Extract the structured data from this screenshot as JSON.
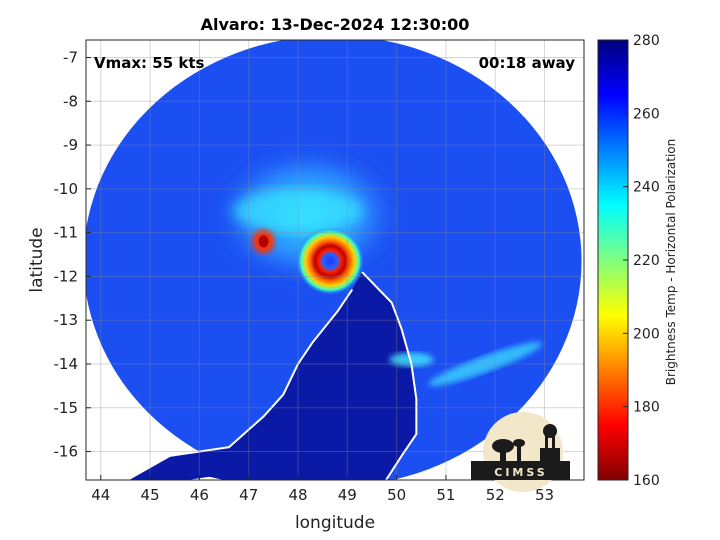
{
  "chart_data": {
    "type": "heatmap",
    "title": "Alvaro: 13-Dec-2024 12:30:00",
    "xlabel": "longitude",
    "ylabel": "latitude",
    "xlim": [
      43.7,
      53.8
    ],
    "ylim": [
      -16.65,
      -6.6
    ],
    "xticks": [
      44,
      45,
      46,
      47,
      48,
      49,
      50,
      51,
      52,
      53
    ],
    "yticks": [
      -7,
      -8,
      -9,
      -10,
      -11,
      -12,
      -13,
      -14,
      -15,
      -16
    ],
    "grid": true,
    "annotations": {
      "intensity": "Vmax: 55 kts",
      "time_offset": "00:18 away"
    },
    "colorbar": {
      "label": "Brightness Temp - Horizontal Polarization",
      "range": [
        160,
        280
      ],
      "ticks": [
        160,
        180,
        200,
        220,
        240,
        260,
        280
      ],
      "colormap": "jet"
    },
    "swath": {
      "center": [
        48.7,
        -11.65
      ],
      "radius_deg": 5.05
    },
    "features": [
      {
        "label": "eye",
        "lon": 48.65,
        "lat": -11.65,
        "value": 225
      },
      {
        "label": "eyewall",
        "lon": 48.65,
        "lat": -11.65,
        "value": 168
      },
      {
        "label": "convective-band-west",
        "lon": 47.3,
        "lat": -11.2,
        "value": 185
      }
    ],
    "logo": "CIMSS"
  }
}
